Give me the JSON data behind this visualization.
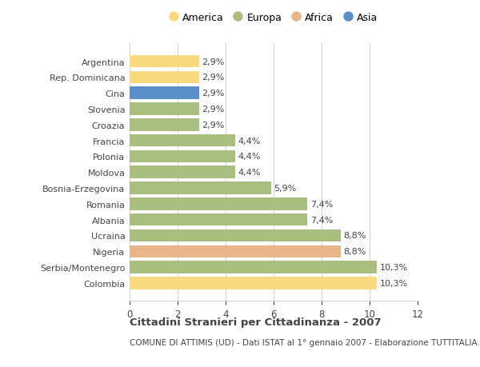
{
  "countries": [
    "Argentina",
    "Rep. Dominicana",
    "Cina",
    "Slovenia",
    "Croazia",
    "Francia",
    "Polonia",
    "Moldova",
    "Bosnia-Erzegovina",
    "Romania",
    "Albania",
    "Ucraina",
    "Nigeria",
    "Serbia/Montenegro",
    "Colombia"
  ],
  "values": [
    2.9,
    2.9,
    2.9,
    2.9,
    2.9,
    4.4,
    4.4,
    4.4,
    5.9,
    7.4,
    7.4,
    8.8,
    8.8,
    10.3,
    10.3
  ],
  "labels": [
    "2,9%",
    "2,9%",
    "2,9%",
    "2,9%",
    "2,9%",
    "4,4%",
    "4,4%",
    "4,4%",
    "5,9%",
    "7,4%",
    "7,4%",
    "8,8%",
    "8,8%",
    "10,3%",
    "10,3%"
  ],
  "continents": [
    "America",
    "America",
    "Asia",
    "Europa",
    "Europa",
    "Europa",
    "Europa",
    "Europa",
    "Europa",
    "Europa",
    "Europa",
    "Europa",
    "Africa",
    "Europa",
    "America"
  ],
  "colors": {
    "America": "#FADA7E",
    "Europa": "#A8BF7F",
    "Africa": "#E8B48A",
    "Asia": "#5B8FC9"
  },
  "legend_order": [
    "America",
    "Europa",
    "Africa",
    "Asia"
  ],
  "title": "Cittadini Stranieri per Cittadinanza - 2007",
  "subtitle": "COMUNE DI ATTIMIS (UD) - Dati ISTAT al 1° gennaio 2007 - Elaborazione TUTTITALIA.IT",
  "xlim": [
    0,
    12
  ],
  "xticks": [
    0,
    2,
    4,
    6,
    8,
    10,
    12
  ],
  "background_color": "#ffffff",
  "bar_height": 0.78,
  "grid_color": "#d0d0d0",
  "text_color": "#444444",
  "label_fontsize": 8.0,
  "ytick_fontsize": 8.0,
  "xtick_fontsize": 8.5,
  "title_fontsize": 9.5,
  "subtitle_fontsize": 7.5,
  "legend_fontsize": 9.0
}
